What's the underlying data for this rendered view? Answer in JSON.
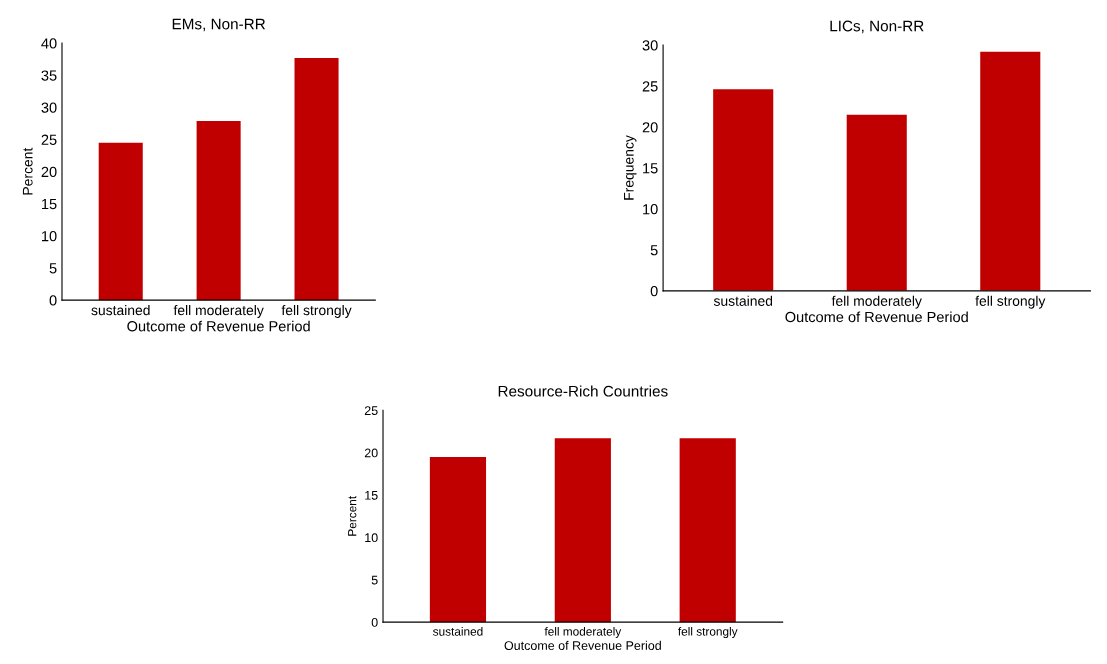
{
  "chart_data": [
    {
      "type": "bar",
      "title": "EMs, Non-RR",
      "xlabel": "Outcome of Revenue Period",
      "ylabel": "Percent",
      "categories": [
        "sustained",
        "fell moderately",
        "fell strongly"
      ],
      "values": [
        24.5,
        27.9,
        37.7
      ],
      "color": "#c00000",
      "ylim": [
        0,
        40
      ],
      "yticks": [
        0,
        5,
        10,
        15,
        20,
        25,
        30,
        35,
        40
      ]
    },
    {
      "type": "bar",
      "title": "LICs, Non-RR",
      "xlabel": "Outcome of Revenue Period",
      "ylabel": "Frequency",
      "categories": [
        "sustained",
        "fell moderately",
        "fell strongly"
      ],
      "values": [
        24.6,
        21.5,
        29.2
      ],
      "color": "#c00000",
      "ylim": [
        0,
        30
      ],
      "yticks": [
        0,
        5,
        10,
        15,
        20,
        25,
        30
      ]
    },
    {
      "type": "bar",
      "title": "Resource-Rich Countries",
      "xlabel": "Outcome of Revenue Period",
      "ylabel": "Percent",
      "categories": [
        "sustained",
        "fell moderately",
        "fell strongly"
      ],
      "values": [
        19.5,
        21.7,
        21.7
      ],
      "color": "#c00000",
      "ylim": [
        0,
        25
      ],
      "yticks": [
        0,
        5,
        10,
        15,
        20,
        25
      ]
    }
  ]
}
